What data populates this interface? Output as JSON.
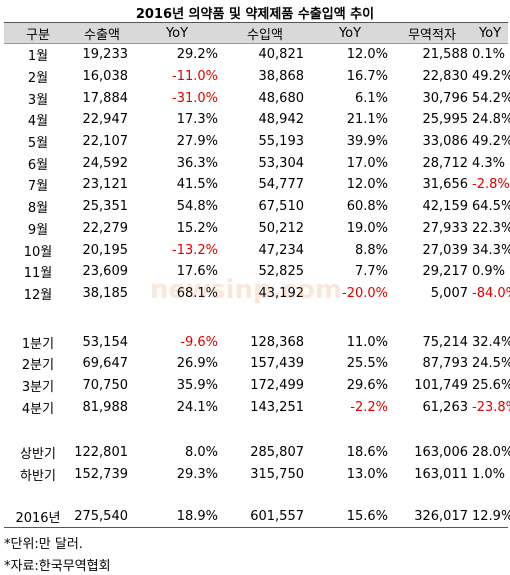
{
  "title": "2016년 의약품 및 약제제품 수출입액 추이",
  "table": {
    "header": [
      "구분",
      "수출액",
      "YoY",
      "수입액",
      "YoY",
      "무역적자",
      "YoY"
    ],
    "sections": [
      {
        "rows": [
          [
            "1월",
            "19,233",
            "29.2%",
            "40,821",
            "12.0%",
            "21,588",
            "0.1%"
          ],
          [
            "2월",
            "16,038",
            "-11.0%",
            "38,868",
            "16.7%",
            "22,830",
            "49.2%"
          ],
          [
            "3월",
            "17,884",
            "-31.0%",
            "48,680",
            "6.1%",
            "30,796",
            "54.2%"
          ],
          [
            "4월",
            "22,947",
            "17.3%",
            "48,942",
            "21.1%",
            "25,995",
            "24.8%"
          ],
          [
            "5월",
            "22,107",
            "27.9%",
            "55,193",
            "39.9%",
            "33,086",
            "49.2%"
          ],
          [
            "6월",
            "24,592",
            "36.3%",
            "53,304",
            "17.0%",
            "28,712",
            "4.3%"
          ],
          [
            "7월",
            "23,121",
            "41.5%",
            "54,777",
            "12.0%",
            "31,656",
            "-2.8%"
          ],
          [
            "8월",
            "25,351",
            "54.8%",
            "67,510",
            "60.8%",
            "42,159",
            "64.5%"
          ],
          [
            "9월",
            "22,279",
            "15.2%",
            "50,212",
            "19.0%",
            "27,933",
            "22.3%"
          ],
          [
            "10월",
            "20,195",
            "-13.2%",
            "47,234",
            "8.8%",
            "27,039",
            "34.3%"
          ],
          [
            "11월",
            "23,609",
            "17.6%",
            "52,825",
            "7.7%",
            "29,217",
            "0.9%"
          ],
          [
            "12월",
            "38,185",
            "68.1%",
            "43,192",
            "-20.0%",
            "5,007",
            "-84.0%"
          ]
        ]
      },
      {
        "rows": [
          [
            "1분기",
            "53,154",
            "-9.6%",
            "128,368",
            "11.0%",
            "75,214",
            "32.4%"
          ],
          [
            "2분기",
            "69,647",
            "26.9%",
            "157,439",
            "25.5%",
            "87,793",
            "24.5%"
          ],
          [
            "3분기",
            "70,750",
            "35.9%",
            "172,499",
            "29.6%",
            "101,749",
            "25.6%"
          ],
          [
            "4분기",
            "81,988",
            "24.1%",
            "143,251",
            "-2.2%",
            "61,263",
            "-23.8%"
          ]
        ]
      },
      {
        "rows": [
          [
            "상반기",
            "122,801",
            "8.0%",
            "285,807",
            "18.6%",
            "163,006",
            "28.0%"
          ],
          [
            "하반기",
            "152,739",
            "29.3%",
            "315,750",
            "13.0%",
            "163,011",
            "1.0%"
          ]
        ]
      },
      {
        "rows": [
          [
            "2016년",
            "275,540",
            "18.9%",
            "601,557",
            "15.6%",
            "326,017",
            "12.9%"
          ]
        ]
      }
    ]
  },
  "watermark": "newsinp.com",
  "notes": [
    "*단위:만 달러.",
    "*자료:한국무역협회"
  ]
}
